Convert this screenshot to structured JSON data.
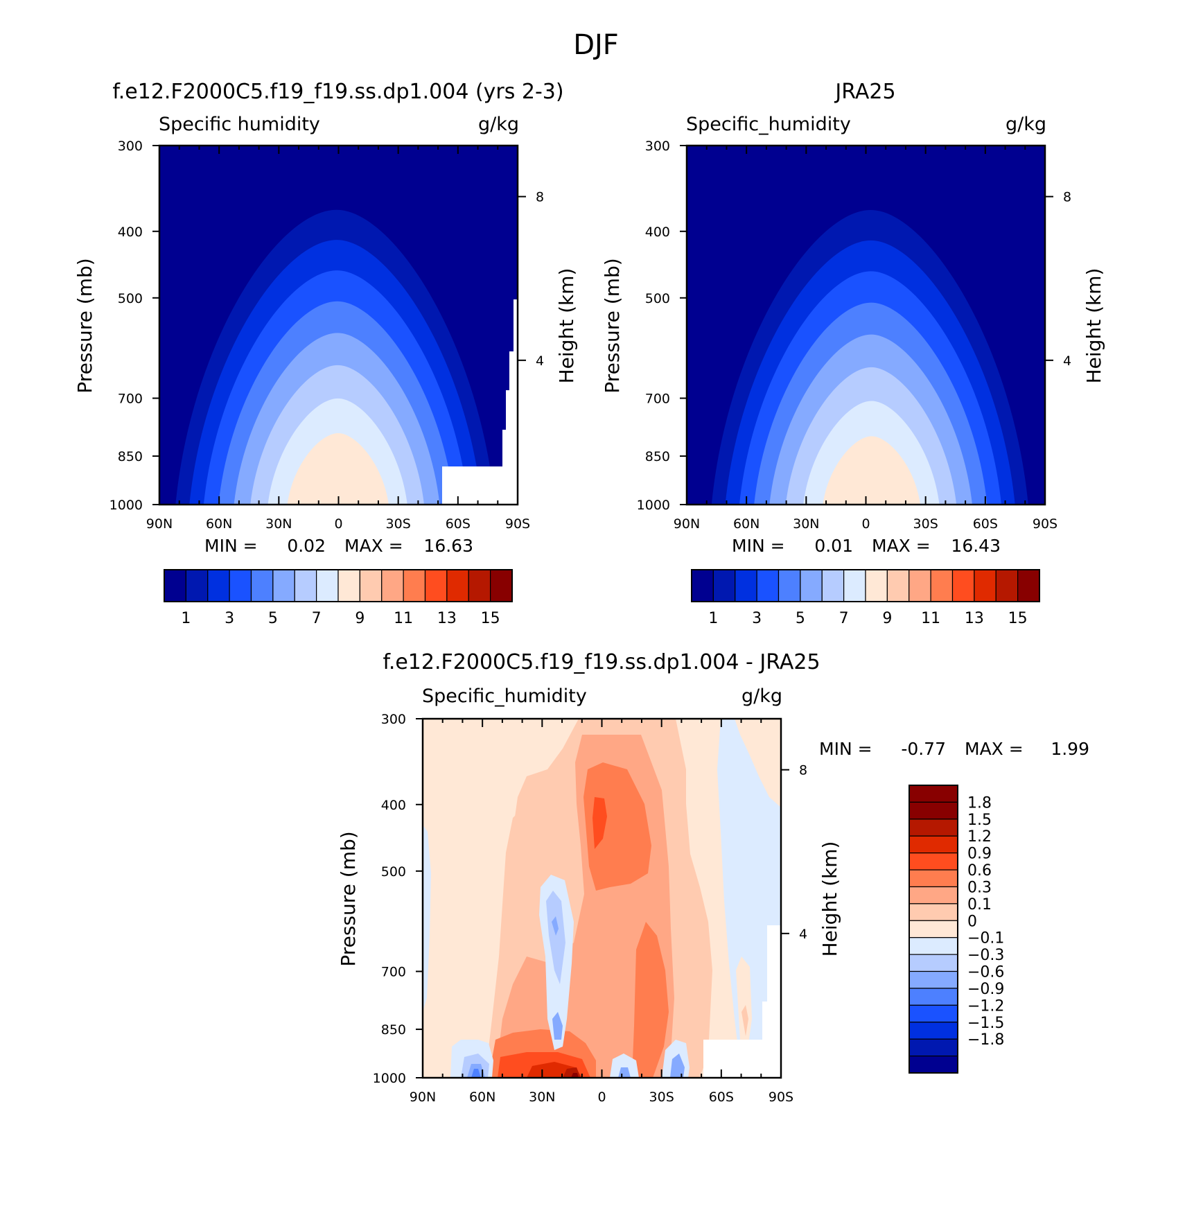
{
  "figure": {
    "title": "DJF"
  },
  "axis_labels": {
    "pressure": "Pressure (mb)",
    "height": "Height (km)"
  },
  "chart_data": [
    {
      "type": "heatmap",
      "title": "f.e12.F2000C5.f19_f19.ss.dp1.004 (yrs 2-3)",
      "variable": "Specific humidity",
      "units": "g/kg",
      "xlabel": "",
      "ylabel": "Pressure (mb)",
      "y2label": "Height (km)",
      "x_ticks": [
        "90N",
        "60N",
        "30N",
        "0",
        "30S",
        "60S",
        "90S"
      ],
      "xlim": [
        90,
        -90
      ],
      "y_ticks": [
        300,
        400,
        500,
        700,
        850,
        1000
      ],
      "ylim": [
        1000,
        300
      ],
      "y_scale": "log",
      "height_ticks": [
        8,
        4
      ],
      "min_label": "MIN =",
      "min_value": "0.02",
      "max_label": "MAX =",
      "max_value": "16.63",
      "peak_value": 16.63,
      "peak_lat": 0,
      "missing_region": "southern high latitudes near surface",
      "colorbar": {
        "orientation": "horizontal",
        "levels": [
          1,
          3,
          5,
          7,
          9,
          11,
          13,
          15
        ],
        "colors": [
          "#000090",
          "#0018b0",
          "#0030e0",
          "#1a52ff",
          "#4d80ff",
          "#85aaff",
          "#b6ccff",
          "#dcebff",
          "#ffe8d6",
          "#ffcbb0",
          "#ffa785",
          "#ff7d4f",
          "#ff4d1f",
          "#e02a00",
          "#b51800",
          "#880000"
        ]
      }
    },
    {
      "type": "heatmap",
      "title": "JRA25",
      "variable": "Specific_humidity",
      "units": "g/kg",
      "xlabel": "",
      "ylabel": "Pressure (mb)",
      "y2label": "Height (km)",
      "x_ticks": [
        "90N",
        "60N",
        "30N",
        "0",
        "30S",
        "60S",
        "90S"
      ],
      "xlim": [
        90,
        -90
      ],
      "y_ticks": [
        300,
        400,
        500,
        700,
        850,
        1000
      ],
      "ylim": [
        1000,
        300
      ],
      "y_scale": "log",
      "height_ticks": [
        8,
        4
      ],
      "min_label": "MIN =",
      "min_value": "0.01",
      "max_label": "MAX =",
      "max_value": "16.43",
      "peak_value": 16.43,
      "peak_lat": -3,
      "colorbar": {
        "orientation": "horizontal",
        "levels": [
          1,
          3,
          5,
          7,
          9,
          11,
          13,
          15
        ],
        "colors": [
          "#000090",
          "#0018b0",
          "#0030e0",
          "#1a52ff",
          "#4d80ff",
          "#85aaff",
          "#b6ccff",
          "#dcebff",
          "#ffe8d6",
          "#ffcbb0",
          "#ffa785",
          "#ff7d4f",
          "#ff4d1f",
          "#e02a00",
          "#b51800",
          "#880000"
        ]
      }
    },
    {
      "type": "heatmap",
      "title": "f.e12.F2000C5.f19_f19.ss.dp1.004 - JRA25",
      "variable": "Specific_humidity",
      "units": "g/kg",
      "xlabel": "",
      "ylabel": "Pressure (mb)",
      "y2label": "Height (km)",
      "x_ticks": [
        "90N",
        "60N",
        "30N",
        "0",
        "30S",
        "60S",
        "90S"
      ],
      "xlim": [
        90,
        -90
      ],
      "y_ticks": [
        300,
        400,
        500,
        700,
        850,
        1000
      ],
      "ylim": [
        1000,
        300
      ],
      "y_scale": "log",
      "height_ticks": [
        8,
        4
      ],
      "min_label": "MIN =",
      "min_value": "-0.77",
      "max_label": "MAX =",
      "max_value": "1.99",
      "colorbar": {
        "orientation": "vertical",
        "levels": [
          1.8,
          1.5,
          1.2,
          0.9,
          0.6,
          0.3,
          0.1,
          0,
          -0.1,
          -0.3,
          -0.6,
          -0.9,
          -1.2,
          -1.5,
          -1.8
        ],
        "level_labels": [
          "1.8",
          "1.5",
          "1.2",
          "0.9",
          "0.6",
          "0.3",
          "0.1",
          "0",
          "−0.1",
          "−0.3",
          "−0.6",
          "−0.9",
          "−1.2",
          "−1.5",
          "−1.8"
        ],
        "colors": [
          "#880000",
          "#b51800",
          "#e02a00",
          "#ff4d1f",
          "#ff7d4f",
          "#ffa785",
          "#ffcbb0",
          "#ffe8d6",
          "#dcebff",
          "#b6ccff",
          "#85aaff",
          "#4d80ff",
          "#1a52ff",
          "#0030e0",
          "#0018b0",
          "#000090"
        ]
      }
    }
  ]
}
